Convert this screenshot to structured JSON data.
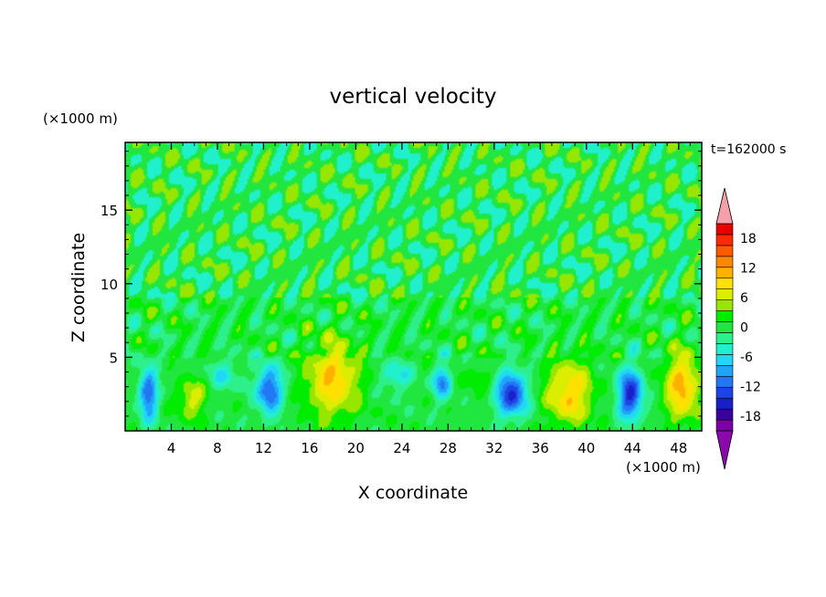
{
  "chart_data": {
    "type": "heatmap",
    "title": "vertical velocity",
    "xlabel": "X coordinate",
    "ylabel": "Z coordinate",
    "x_unit": "(×1000 m)",
    "y_unit": "(×1000 m)",
    "time_label": "t=162000 s",
    "xlim": [
      0,
      50
    ],
    "ylim": [
      0,
      19.6
    ],
    "x_ticks": [
      4,
      8,
      12,
      16,
      20,
      24,
      28,
      32,
      36,
      40,
      44,
      48
    ],
    "y_ticks": [
      5,
      10,
      15
    ],
    "colorbar": {
      "labels": [
        18,
        12,
        6,
        0,
        -6,
        -12,
        -18
      ],
      "range": [
        -21,
        21
      ],
      "colors": [
        "#7b00a8",
        "#3a009e",
        "#1a20c8",
        "#1e44e6",
        "#2277f2",
        "#1fa5f8",
        "#22d6f6",
        "#20f0cc",
        "#2ef08a",
        "#22e640",
        "#00ec00",
        "#96e600",
        "#dcee00",
        "#ffe100",
        "#ffb000",
        "#ff8800",
        "#ff5a00",
        "#ff2a00",
        "#e80000"
      ],
      "over_color": "#f4a0a8",
      "under_color": "#8a0aac"
    },
    "bg_color": "#00f070",
    "cells": [
      {
        "x": 2,
        "z": 2.5,
        "sx": 0.8,
        "sz": 1.8,
        "w": -12
      },
      {
        "x": 5.8,
        "z": 2.2,
        "sx": 1.2,
        "sz": 1.3,
        "w": 7
      },
      {
        "x": 12.5,
        "z": 2.8,
        "sx": 1.1,
        "sz": 1.6,
        "w": -13
      },
      {
        "x": 18,
        "z": 3.5,
        "sx": 2.3,
        "sz": 2.6,
        "w": 10
      },
      {
        "x": 23.5,
        "z": 3.8,
        "sx": 1.3,
        "sz": 1.0,
        "w": -6
      },
      {
        "x": 27.5,
        "z": 3.3,
        "sx": 0.8,
        "sz": 1.1,
        "w": -10
      },
      {
        "x": 33.5,
        "z": 2.5,
        "sx": 1.3,
        "sz": 1.5,
        "w": -15
      },
      {
        "x": 38.5,
        "z": 2.6,
        "sx": 2.0,
        "sz": 2.2,
        "w": 10
      },
      {
        "x": 43.8,
        "z": 2.5,
        "sx": 1.1,
        "sz": 1.7,
        "w": -15
      },
      {
        "x": 48.3,
        "z": 3.0,
        "sx": 1.5,
        "sz": 2.3,
        "w": 11
      },
      {
        "x": 8.5,
        "z": 3.8,
        "sx": 1.3,
        "sz": 1.0,
        "w": -5
      },
      {
        "x": 30.5,
        "z": 3.5,
        "sx": 1.3,
        "sz": 1.0,
        "w": 3
      }
    ]
  }
}
